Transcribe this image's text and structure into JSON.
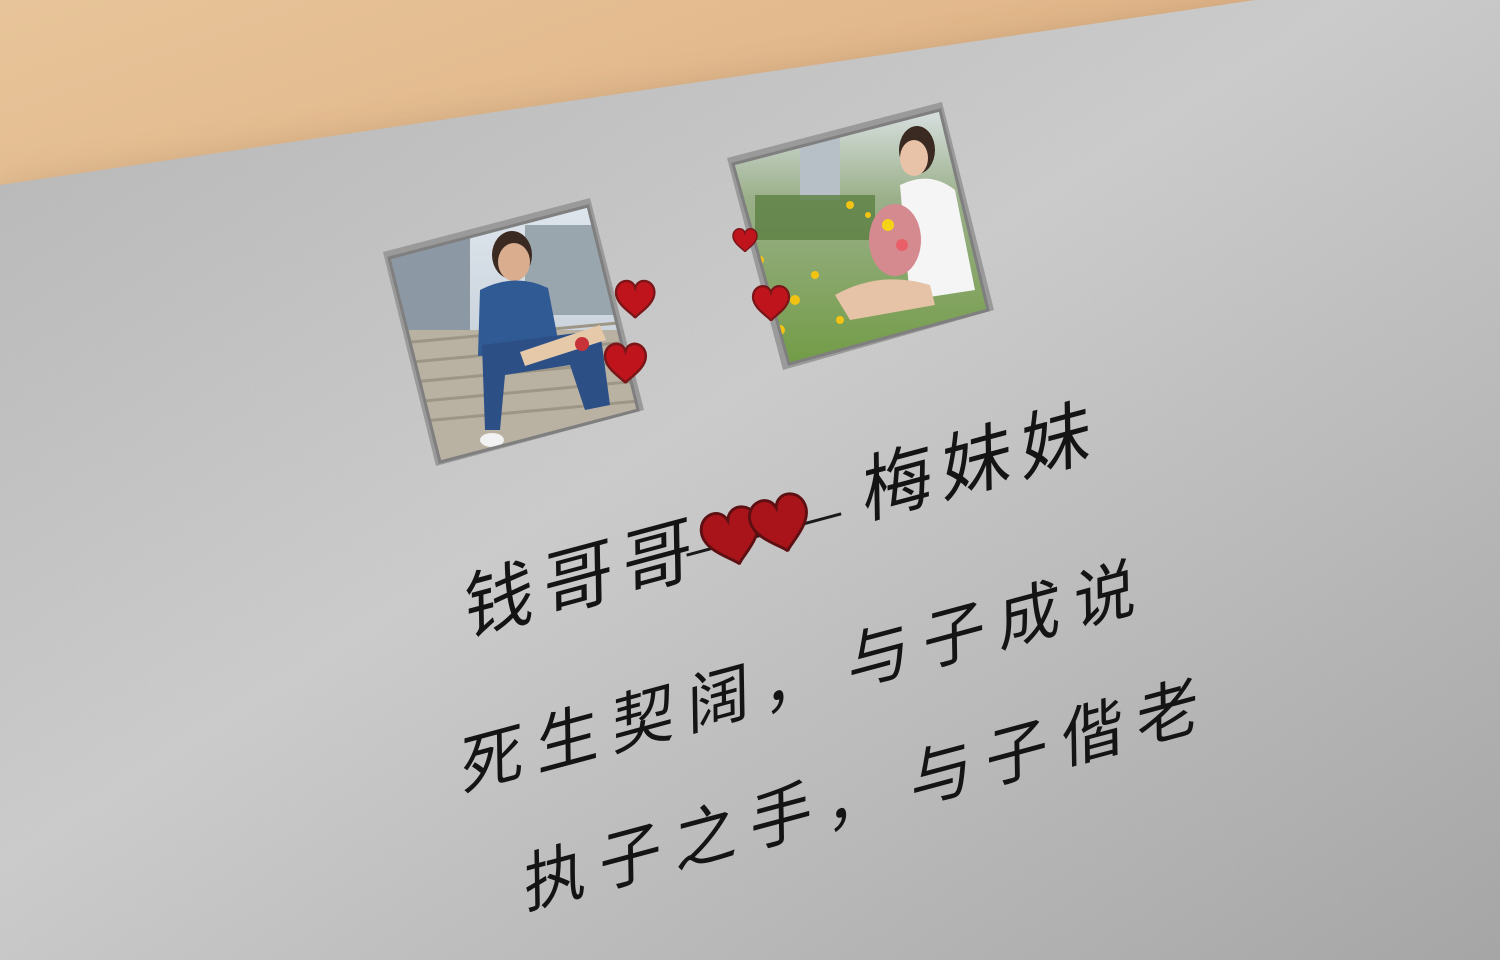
{
  "card": {
    "names": {
      "left": "钱哥哥",
      "right": "梅妹妹"
    },
    "verses": [
      "死生契阔，",
      "与子成说",
      "执子之手，",
      "与子偕老"
    ]
  },
  "colors": {
    "paper": "#bdbdbd",
    "heart": "#c0141c",
    "ink": "#141414"
  },
  "icons": [
    "heart-icon"
  ]
}
